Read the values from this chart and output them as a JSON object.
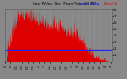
{
  "title": "Solar PV/Inv  5kw   PowerThru v3.1.38",
  "legend_avg": "Current kW Avg",
  "legend_actual": "Actual kW",
  "background_color": "#888888",
  "plot_bg_color": "#888888",
  "bar_color": "#dd0000",
  "avg_line_color": "#2222ff",
  "avg_line_value": 0.22,
  "y_max": 1.0,
  "y_min": 0.0,
  "grid_color": "#aaaaaa",
  "title_color": "#000000",
  "num_points": 300,
  "tick_label_color": "#000000",
  "y_tick_labels": [
    "1",
    "2",
    "3",
    "4",
    "5",
    "6",
    "7",
    "8"
  ],
  "y_tick_vals": [
    0.125,
    0.25,
    0.375,
    0.5,
    0.625,
    0.75,
    0.875,
    1.0
  ]
}
